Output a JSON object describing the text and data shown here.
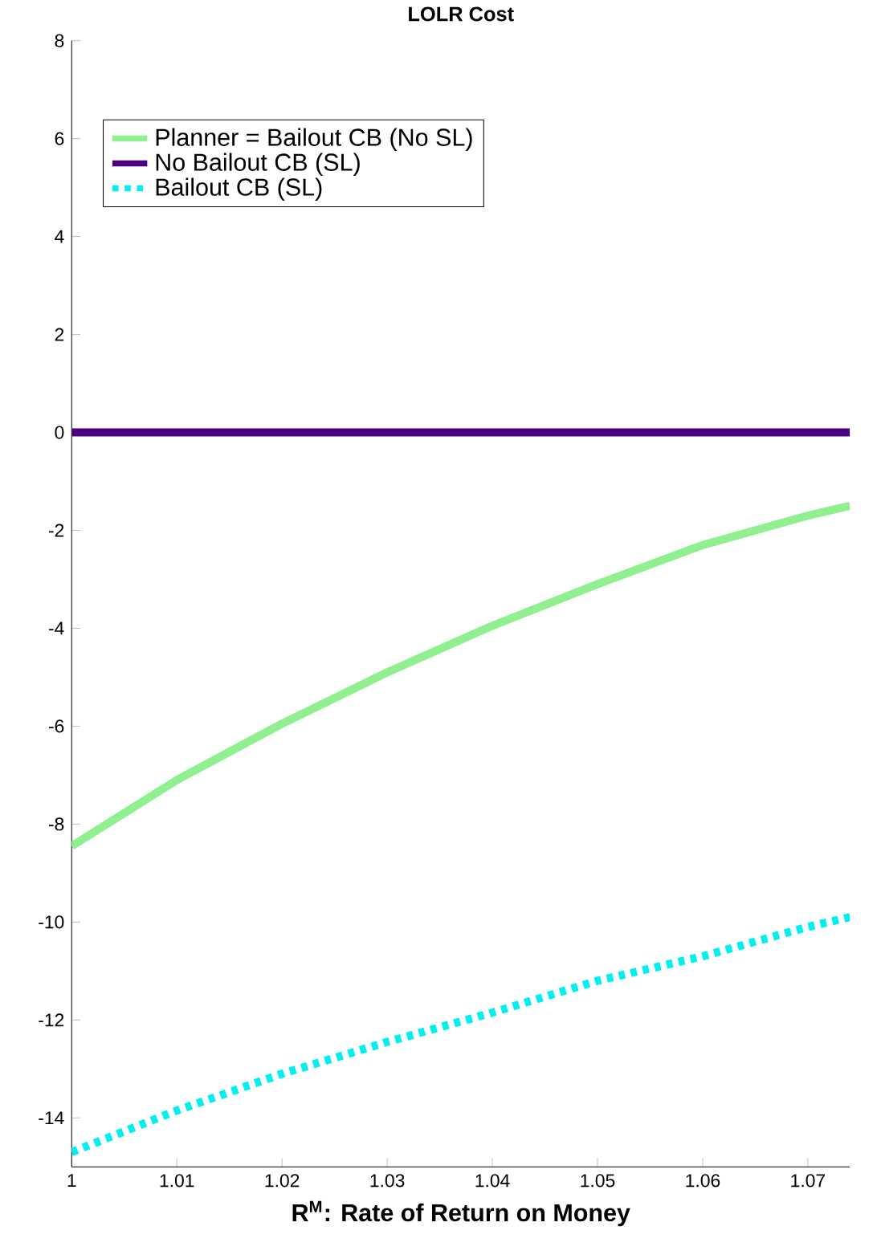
{
  "chart_data": {
    "type": "line",
    "title": "LOLR Cost",
    "xlabel": "R$^{M}$: Rate of Return on Money",
    "xlim": [
      1,
      1.074
    ],
    "ylim": [
      -15,
      8
    ],
    "xticks": [
      1,
      1.01,
      1.02,
      1.03,
      1.04,
      1.05,
      1.06,
      1.07
    ],
    "yticks": [
      -14,
      -12,
      -10,
      -8,
      -6,
      -4,
      -2,
      0,
      2,
      4,
      6,
      8
    ],
    "legend": "top left",
    "series": [
      {
        "name": "Planner = Bailout CB (No SL)",
        "color": "#90f090",
        "line_style": "solid",
        "x": [
          1,
          1.01,
          1.02,
          1.03,
          1.04,
          1.05,
          1.06,
          1.07,
          1.074
        ],
        "values": [
          -8.45,
          -7.1,
          -5.95,
          -4.9,
          -3.95,
          -3.1,
          -2.3,
          -1.7,
          -1.5
        ]
      },
      {
        "name": "No Bailout CB (SL)",
        "color": "#4b0082",
        "line_style": "solid",
        "x": [
          1,
          1.074
        ],
        "values": [
          0,
          0
        ]
      },
      {
        "name": "Bailout CB (SL)",
        "color": "#00f0f0",
        "line_style": "dotted",
        "x": [
          1,
          1.01,
          1.02,
          1.03,
          1.04,
          1.05,
          1.06,
          1.07,
          1.074
        ],
        "values": [
          -14.7,
          -13.85,
          -13.1,
          -12.45,
          -11.85,
          -11.2,
          -10.7,
          -10.1,
          -9.9
        ]
      }
    ]
  }
}
